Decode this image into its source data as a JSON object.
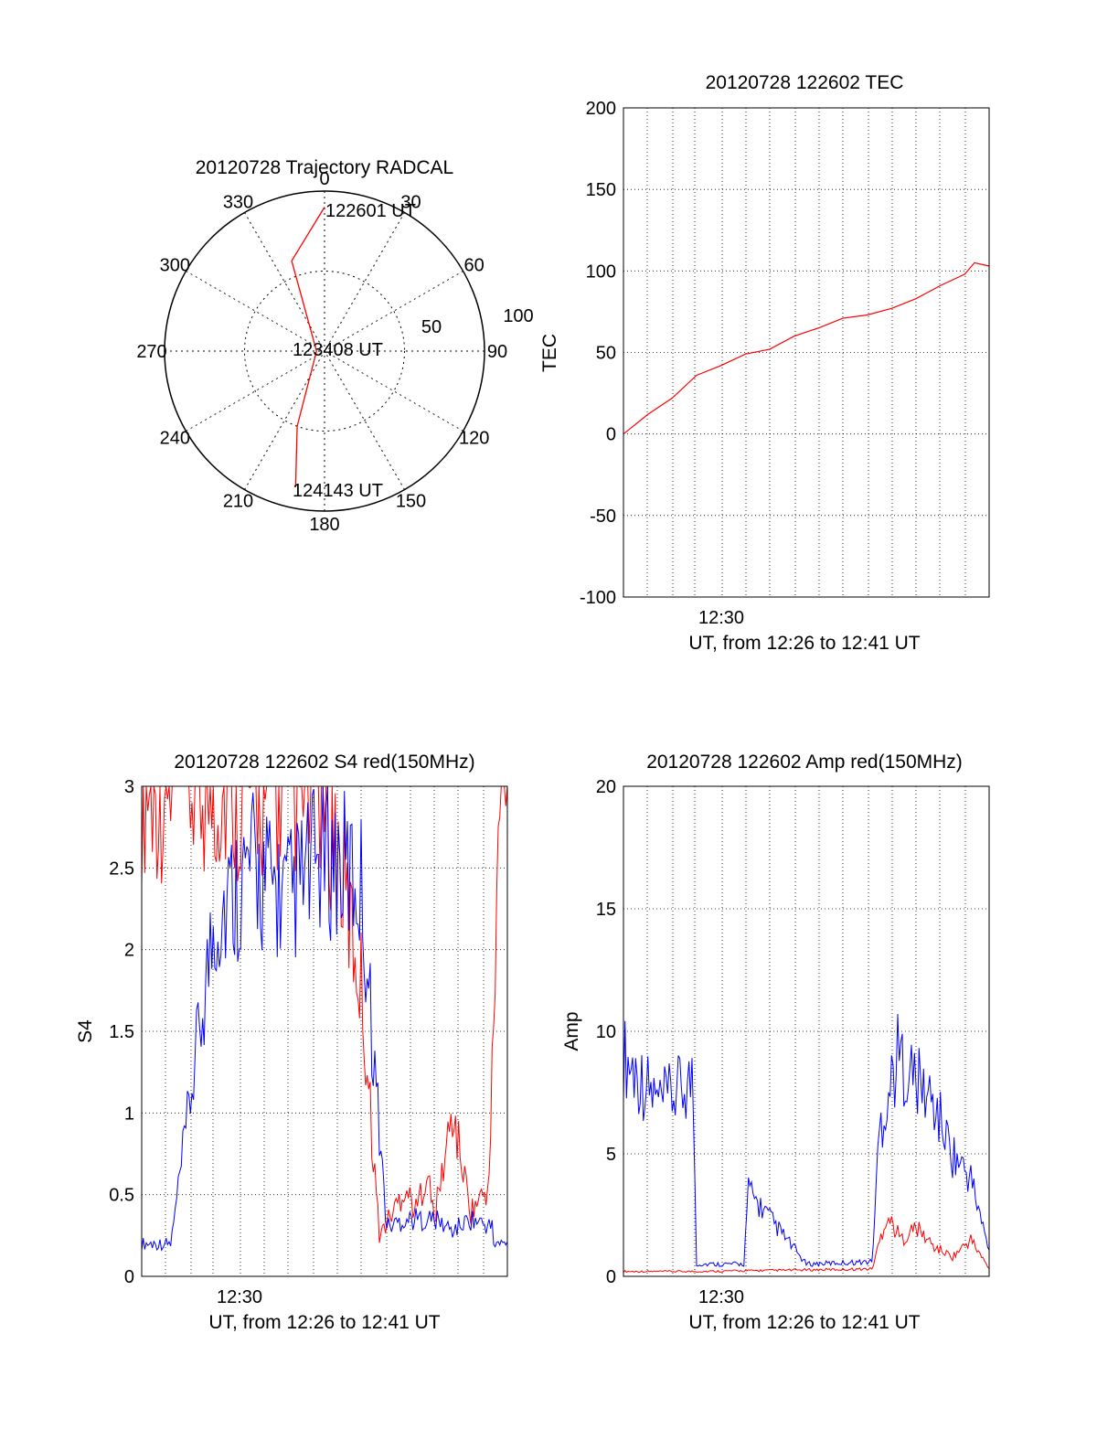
{
  "chart_data": [
    {
      "type": "polar",
      "title": "20120728 Trajectory RADCAL",
      "angle_labels": [
        "0",
        "30",
        "60",
        "90",
        "120",
        "150",
        "180",
        "210",
        "240",
        "270",
        "300",
        "330"
      ],
      "radius_labels": [
        "50",
        "100"
      ],
      "radius_max": 100,
      "trajectory": {
        "color": "#ff0000",
        "points": [
          {
            "az": 0,
            "r": 90,
            "label": "122601 UT"
          },
          {
            "az": 340,
            "r": 60,
            "label": ""
          },
          {
            "az": 270,
            "r": 5,
            "label": "123408 UT"
          },
          {
            "az": 200,
            "r": 50,
            "label": ""
          },
          {
            "az": 192,
            "r": 87,
            "label": "124143 UT"
          }
        ]
      }
    },
    {
      "type": "line",
      "title": "20120728 122602 TEC",
      "ylabel": "TEC",
      "xlabel": "UT, from 12:26 to 12:41 UT",
      "ylim": [
        -100,
        200
      ],
      "yticks": [
        "200",
        "150",
        "100",
        "50",
        "0",
        "-50",
        "-100"
      ],
      "xlim_minutes": [
        12.0,
        15.75
      ],
      "xtick_label": "12:30",
      "series": [
        {
          "color": "#ff0000",
          "x": [
            12.0,
            12.25,
            12.5,
            12.75,
            13.0,
            13.25,
            13.5,
            13.75,
            14.0,
            14.25,
            14.5,
            14.75,
            15.0,
            15.25,
            15.5,
            15.6,
            15.75
          ],
          "values": [
            0,
            12,
            22,
            36,
            42,
            49,
            52,
            60,
            65,
            71,
            73,
            77,
            83,
            91,
            98,
            105,
            103
          ]
        }
      ]
    },
    {
      "type": "line",
      "title": "20120728 122602 S4 red(150MHz)",
      "ylabel": "S4",
      "xlabel": "UT, from 12:26 to 12:41 UT",
      "ylim": [
        0,
        3
      ],
      "yticks": [
        "3",
        "2.5",
        "2",
        "1.5",
        "1",
        "0.5",
        "0"
      ],
      "xtick_label": "12:30",
      "series": [
        {
          "color": "#ff0000",
          "x": [
            0.05,
            0.2,
            0.35,
            0.5,
            0.6,
            0.65,
            0.7,
            0.72,
            0.75,
            0.78,
            0.8,
            0.85,
            0.9,
            0.95,
            0.98
          ],
          "values": [
            3.0,
            3.0,
            3.0,
            3.0,
            1.8,
            0.25,
            0.45,
            0.55,
            0.4,
            0.65,
            0.35,
            1.0,
            0.4,
            0.55,
            3.0
          ]
        },
        {
          "color": "#0000ff",
          "x": [
            0.0,
            0.08,
            0.2,
            0.3,
            0.4,
            0.5,
            0.6,
            0.67,
            0.72,
            0.8,
            0.85,
            0.9,
            0.96
          ],
          "values": [
            0.2,
            0.2,
            2.2,
            2.5,
            2.3,
            2.6,
            2.4,
            0.3,
            0.35,
            0.35,
            0.28,
            0.35,
            0.3
          ]
        }
      ]
    },
    {
      "type": "line",
      "title": "20120728 122602 Amp red(150MHz)",
      "ylabel": "Amp",
      "xlabel": "UT, from 12:26 to 12:41 UT",
      "ylim": [
        0,
        20
      ],
      "yticks": [
        "20",
        "15",
        "10",
        "5",
        "0"
      ],
      "xtick_label": "12:30",
      "series": [
        {
          "color": "#0000ff",
          "x": [
            0.0,
            0.1,
            0.19,
            0.2,
            0.33,
            0.34,
            0.5,
            0.68,
            0.7,
            0.75,
            0.8,
            0.85,
            0.9,
            0.95,
            1.0
          ],
          "values": [
            9,
            7,
            8,
            0.5,
            0.5,
            3.5,
            0.5,
            0.6,
            6,
            9,
            8,
            7,
            5,
            4,
            1
          ]
        },
        {
          "color": "#ff0000",
          "x": [
            0.0,
            0.2,
            0.68,
            0.72,
            0.76,
            0.8,
            0.85,
            0.9,
            0.95,
            1.0
          ],
          "values": [
            0.2,
            0.2,
            0.3,
            2.5,
            1.5,
            2.0,
            1.2,
            0.8,
            1.5,
            0.3
          ]
        }
      ]
    }
  ]
}
